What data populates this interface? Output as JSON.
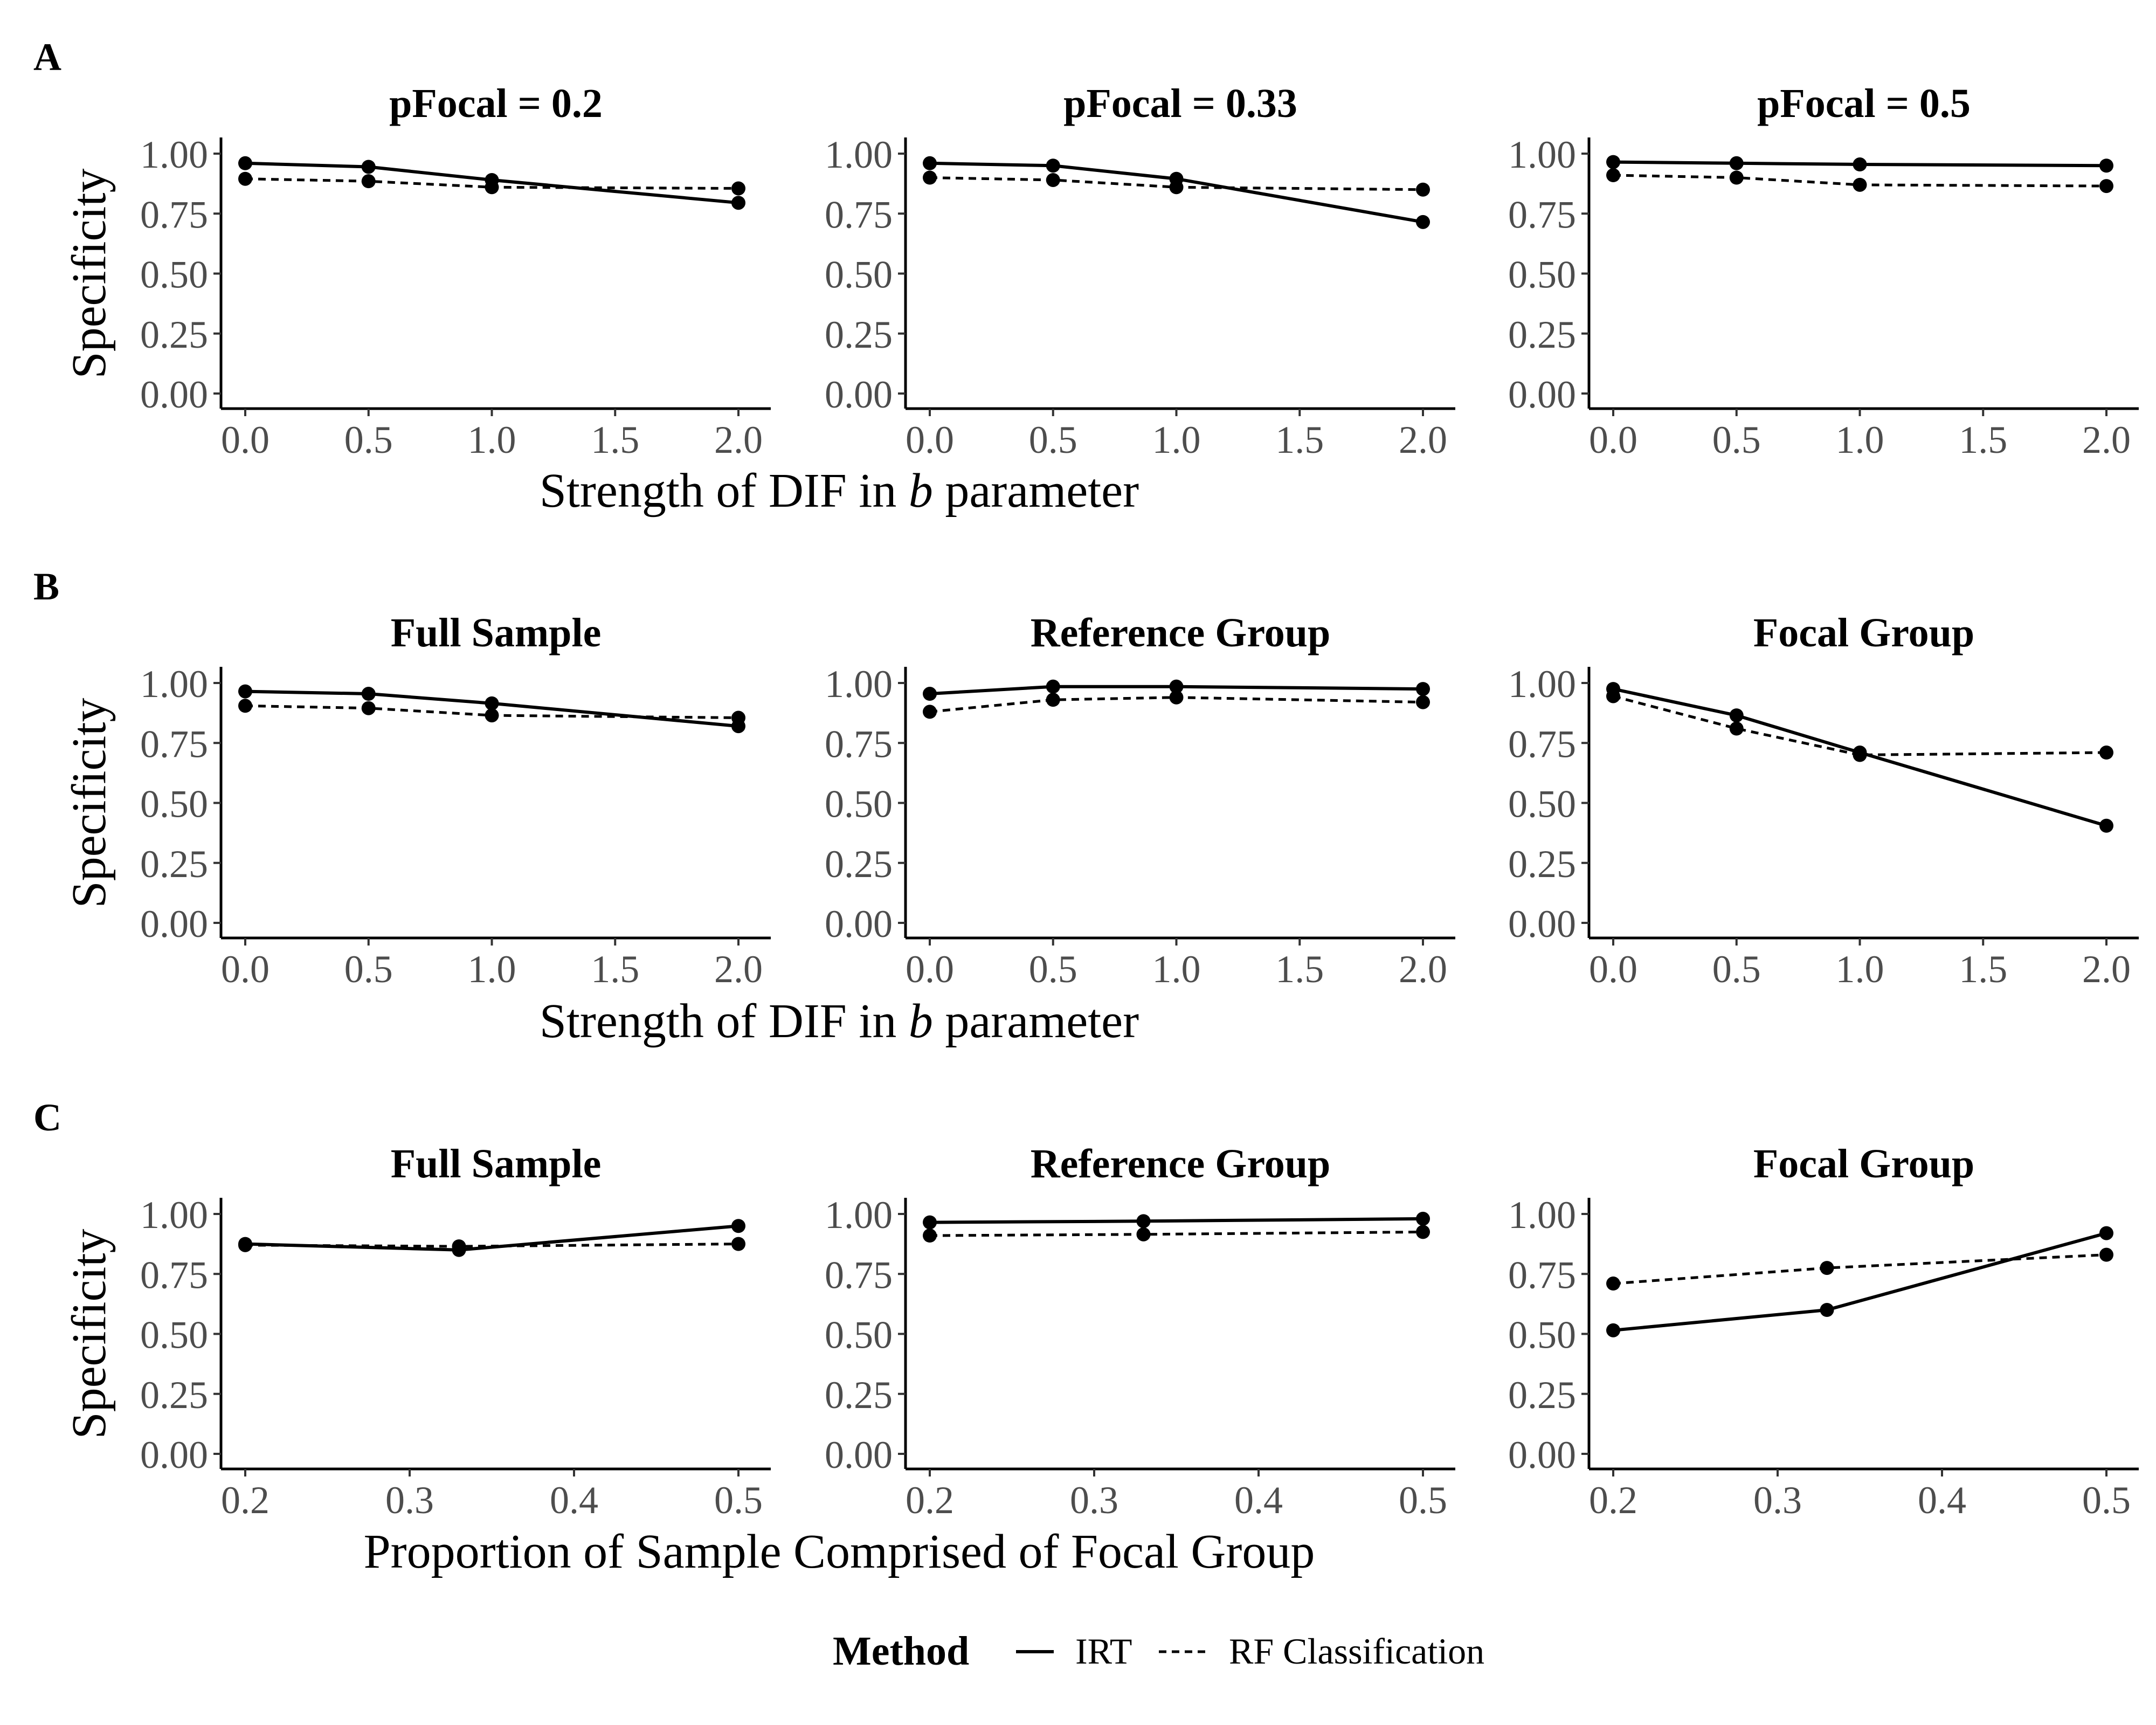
{
  "legend": {
    "title": "Method",
    "entries": [
      {
        "label": "IRT",
        "linestyle": "solid"
      },
      {
        "label": "RF Classification",
        "linestyle": "dashed"
      }
    ]
  },
  "colors": {
    "line": "#000000",
    "tick_label": "#4d4d4d",
    "background": "#ffffff"
  },
  "chart_data": [
    {
      "panel": "A",
      "type": "line",
      "xlabel": "Strength of DIF in ",
      "xlabel_italic": "b",
      "xlabel_suffix": " parameter",
      "ylabel": "Specificity",
      "xlim": [
        0,
        2
      ],
      "ylim": [
        0,
        1
      ],
      "xticks": [
        0,
        0.5,
        1,
        1.5,
        2
      ],
      "xtick_labels": [
        "0.0",
        "0.5",
        "1.0",
        "1.5",
        "2.0"
      ],
      "yticks": [
        0,
        0.25,
        0.5,
        0.75,
        1
      ],
      "ytick_labels": [
        "0.00",
        "0.25",
        "0.50",
        "0.75",
        "1.00"
      ],
      "facets": [
        {
          "title": "pFocal = 0.2",
          "x": [
            0,
            0.5,
            1,
            2
          ],
          "series": [
            {
              "name": "IRT",
              "values": [
                0.96,
                0.945,
                0.89,
                0.795
              ]
            },
            {
              "name": "RF Classification",
              "values": [
                0.895,
                0.885,
                0.86,
                0.855
              ]
            }
          ]
        },
        {
          "title": "pFocal = 0.33",
          "x": [
            0,
            0.5,
            1,
            2
          ],
          "series": [
            {
              "name": "IRT",
              "values": [
                0.96,
                0.95,
                0.895,
                0.715
              ]
            },
            {
              "name": "RF Classification",
              "values": [
                0.9,
                0.89,
                0.86,
                0.85
              ]
            }
          ]
        },
        {
          "title": "pFocal = 0.5",
          "x": [
            0,
            0.5,
            1,
            2
          ],
          "series": [
            {
              "name": "IRT",
              "values": [
                0.965,
                0.96,
                0.955,
                0.95
              ]
            },
            {
              "name": "RF Classification",
              "values": [
                0.91,
                0.9,
                0.87,
                0.865
              ]
            }
          ]
        }
      ]
    },
    {
      "panel": "B",
      "type": "line",
      "xlabel": "Strength of DIF in ",
      "xlabel_italic": "b",
      "xlabel_suffix": " parameter",
      "ylabel": "Specificity",
      "xlim": [
        0,
        2
      ],
      "ylim": [
        0,
        1
      ],
      "xticks": [
        0,
        0.5,
        1,
        1.5,
        2
      ],
      "xtick_labels": [
        "0.0",
        "0.5",
        "1.0",
        "1.5",
        "2.0"
      ],
      "yticks": [
        0,
        0.25,
        0.5,
        0.75,
        1
      ],
      "ytick_labels": [
        "0.00",
        "0.25",
        "0.50",
        "0.75",
        "1.00"
      ],
      "facets": [
        {
          "title": "Full Sample",
          "x": [
            0,
            0.5,
            1,
            2
          ],
          "series": [
            {
              "name": "IRT",
              "values": [
                0.965,
                0.955,
                0.915,
                0.82
              ]
            },
            {
              "name": "RF Classification",
              "values": [
                0.905,
                0.895,
                0.865,
                0.855
              ]
            }
          ]
        },
        {
          "title": "Reference Group",
          "x": [
            0,
            0.5,
            1,
            2
          ],
          "series": [
            {
              "name": "IRT",
              "values": [
                0.955,
                0.985,
                0.985,
                0.975
              ]
            },
            {
              "name": "RF Classification",
              "values": [
                0.88,
                0.93,
                0.94,
                0.92
              ]
            }
          ]
        },
        {
          "title": "Focal Group",
          "x": [
            0,
            0.5,
            1,
            2
          ],
          "series": [
            {
              "name": "IRT",
              "values": [
                0.975,
                0.865,
                0.71,
                0.405
              ]
            },
            {
              "name": "RF Classification",
              "values": [
                0.945,
                0.81,
                0.7,
                0.71
              ]
            }
          ]
        }
      ]
    },
    {
      "panel": "C",
      "type": "line",
      "xlabel": "Proportion of Sample Comprised of Focal Group",
      "ylabel": "Specificity",
      "xlim": [
        0.2,
        0.5
      ],
      "ylim": [
        0,
        1
      ],
      "xticks": [
        0.2,
        0.3,
        0.4,
        0.5
      ],
      "xtick_labels": [
        "0.2",
        "0.3",
        "0.4",
        "0.5"
      ],
      "yticks": [
        0,
        0.25,
        0.5,
        0.75,
        1
      ],
      "ytick_labels": [
        "0.00",
        "0.25",
        "0.50",
        "0.75",
        "1.00"
      ],
      "facets": [
        {
          "title": "Full Sample",
          "x": [
            0.2,
            0.33,
            0.5
          ],
          "series": [
            {
              "name": "IRT",
              "values": [
                0.875,
                0.85,
                0.95
              ]
            },
            {
              "name": "RF Classification",
              "values": [
                0.87,
                0.865,
                0.875
              ]
            }
          ]
        },
        {
          "title": "Reference Group",
          "x": [
            0.2,
            0.33,
            0.5
          ],
          "series": [
            {
              "name": "IRT",
              "values": [
                0.965,
                0.97,
                0.98
              ]
            },
            {
              "name": "RF Classification",
              "values": [
                0.91,
                0.915,
                0.925
              ]
            }
          ]
        },
        {
          "title": "Focal Group",
          "x": [
            0.2,
            0.33,
            0.5
          ],
          "series": [
            {
              "name": "IRT",
              "values": [
                0.515,
                0.6,
                0.92
              ]
            },
            {
              "name": "RF Classification",
              "values": [
                0.71,
                0.775,
                0.83
              ]
            }
          ]
        }
      ]
    }
  ]
}
